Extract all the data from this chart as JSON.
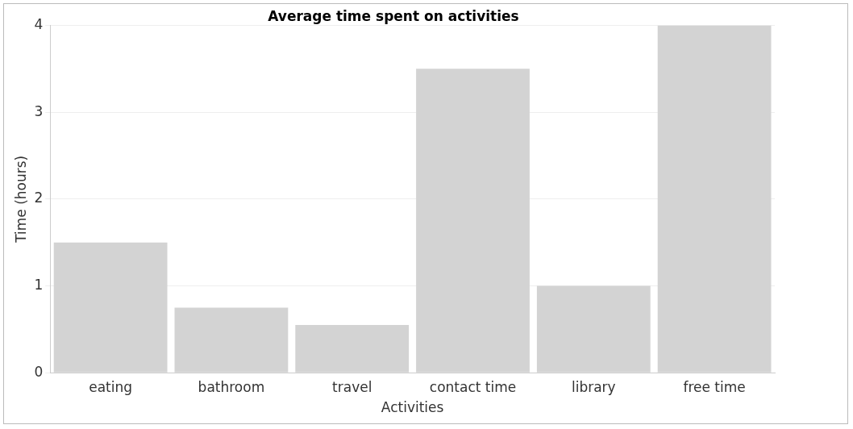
{
  "chart_data": {
    "type": "bar",
    "title": "Average time spent on activities",
    "xlabel": "Activities",
    "ylabel": "Time (hours)",
    "categories": [
      "eating",
      "bathroom",
      "travel",
      "contact time",
      "library",
      "free time"
    ],
    "values": [
      1.5,
      0.75,
      0.55,
      3.5,
      1,
      4
    ],
    "color": "#d3d3d3",
    "ylim": [
      0,
      4
    ],
    "yticks": [
      0,
      1,
      2,
      3,
      4
    ],
    "grid": "y",
    "legend": false
  }
}
